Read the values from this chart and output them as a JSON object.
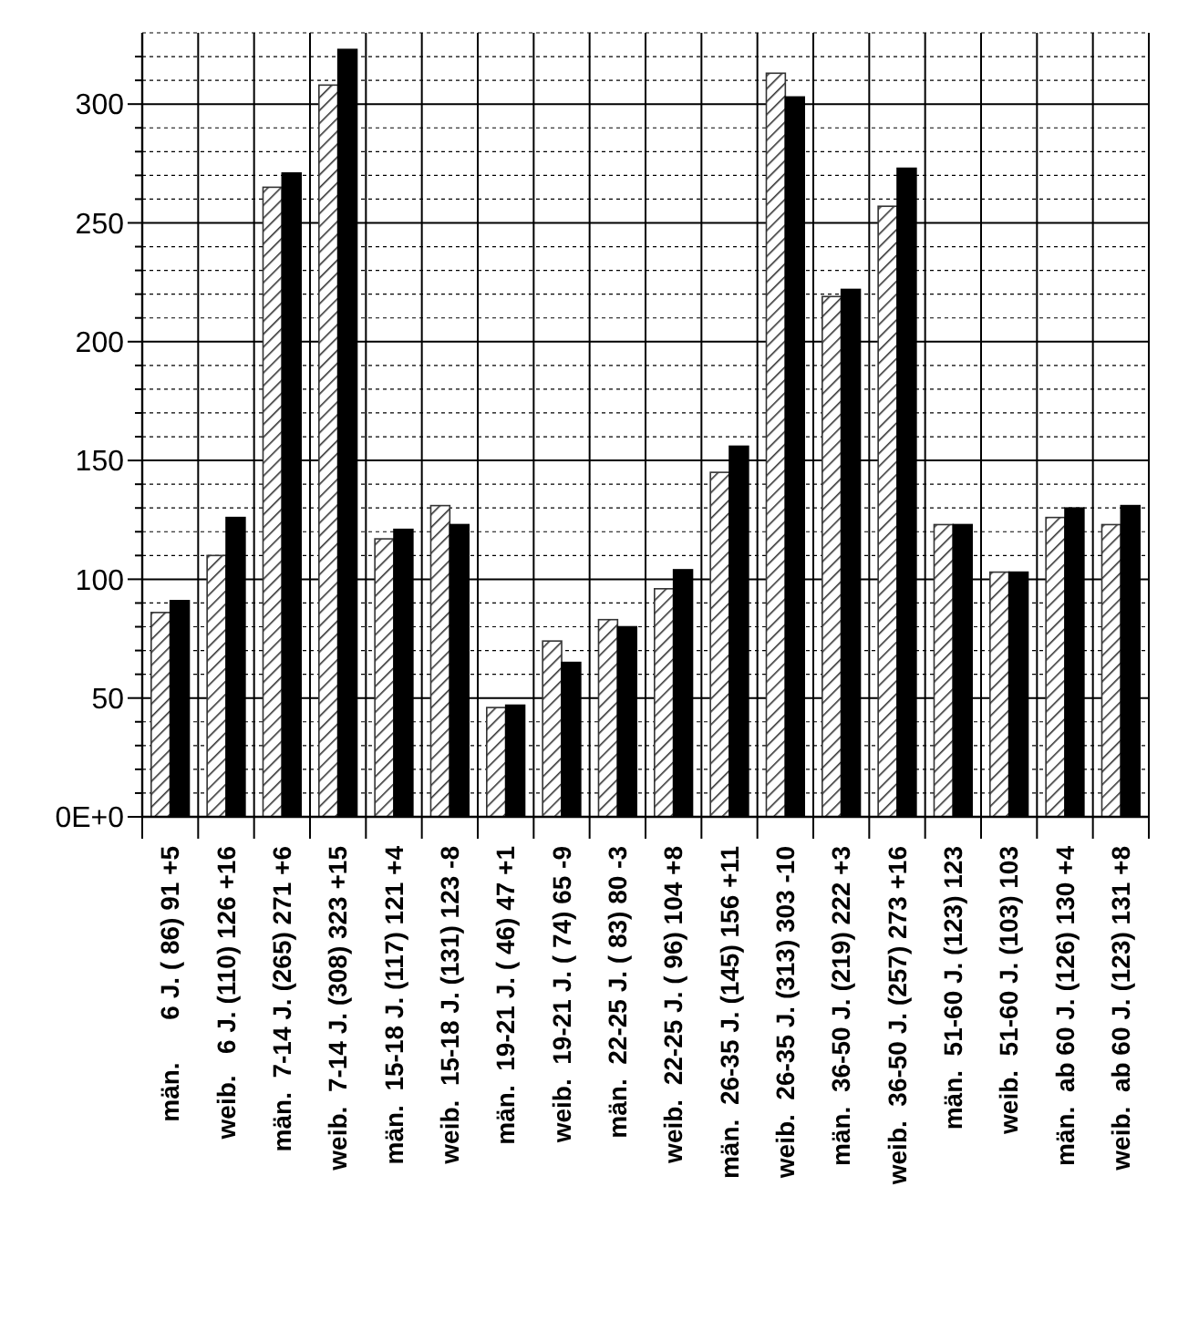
{
  "chart_data": {
    "type": "bar",
    "categories": [
      "män.      6 J. ( 86) 91 +5",
      "weib.   6 J. (110) 126 +16",
      "män.  7-14 J. (265) 271 +6",
      "weib.  7-14 J. (308) 323 +15",
      "män.  15-18 J. (117) 121 +4",
      "weib.  15-18 J. (131) 123 -8",
      "män.  19-21 J. ( 46) 47 +1",
      "weib.  19-21 J. ( 74) 65 -9",
      "män.  22-25 J. ( 83) 80 -3",
      "weib.  22-25 J. ( 96) 104 +8",
      "män.  26-35 J. (145) 156 +11",
      "weib.  26-35 J. (313) 303 -10",
      "män.  36-50 J. (219) 222 +3",
      "weib.  36-50 J. (257) 273 +16",
      "män.  51-60 J. (123) 123",
      "weib.  51-60 J. (103) 103",
      "män.  ab 60 J. (126) 130 +4",
      "weib.  ab 60 J. (123) 131 +8"
    ],
    "series": [
      {
        "color": "#333333",
        "values": [
          86,
          110,
          265,
          308,
          117,
          131,
          46,
          74,
          83,
          96,
          145,
          313,
          219,
          257,
          123,
          103,
          126,
          123
        ]
      },
      {
        "color": "#000000",
        "values": [
          91,
          126,
          271,
          323,
          121,
          123,
          47,
          65,
          80,
          104,
          156,
          303,
          222,
          273,
          123,
          103,
          130,
          131
        ]
      }
    ],
    "ylim": [
      0,
      330
    ],
    "yticks": [
      {
        "value": 0,
        "label": "0E+0"
      },
      {
        "value": 10,
        "label": null
      },
      {
        "value": 20,
        "label": null
      },
      {
        "value": 30,
        "label": null
      },
      {
        "value": 40,
        "label": null
      },
      50,
      {
        "value": 60,
        "label": null
      },
      {
        "value": 70,
        "label": null
      },
      {
        "value": 80,
        "label": null
      },
      {
        "value": 90,
        "label": null
      },
      100,
      {
        "value": 110,
        "label": null
      },
      {
        "value": 120,
        "label": null
      },
      {
        "value": 130,
        "label": null
      },
      {
        "value": 140,
        "label": null
      },
      150,
      {
        "value": 160,
        "label": null
      },
      {
        "value": 170,
        "label": null
      },
      {
        "value": 180,
        "label": null
      },
      {
        "value": 190,
        "label": null
      },
      200,
      {
        "value": 210,
        "label": null
      },
      {
        "value": 220,
        "label": null
      },
      {
        "value": 230,
        "label": null
      },
      {
        "value": 240,
        "label": null
      },
      250,
      {
        "value": 260,
        "label": null
      },
      {
        "value": 270,
        "label": null
      },
      {
        "value": 280,
        "label": null
      },
      {
        "value": 290,
        "label": null
      },
      300,
      {
        "value": 310,
        "label": null
      },
      {
        "value": 320,
        "label": null
      }
    ],
    "grid": true
  }
}
